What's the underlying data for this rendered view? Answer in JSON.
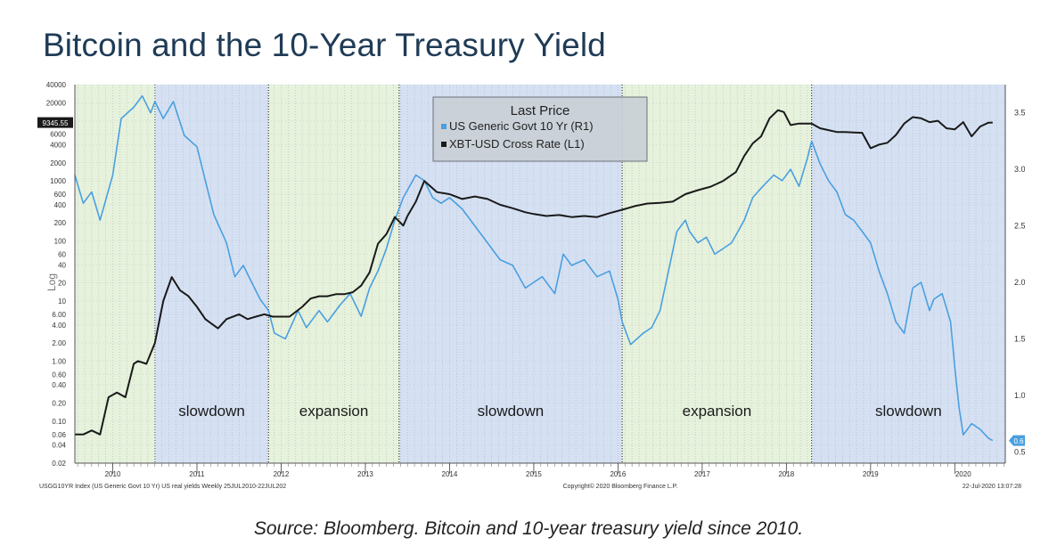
{
  "title": "Bitcoin and the 10-Year Treasury Yield",
  "caption": "Source: Bloomberg. Bitcoin and 10-year treasury yield since 2010.",
  "chart_data": {
    "type": "line",
    "left_axis": {
      "label": "Log",
      "scale": "log",
      "range": [
        0.02,
        40000
      ],
      "ticks": [
        40000,
        20000,
        10000,
        6000,
        4000,
        2000,
        1000,
        600,
        400,
        200,
        100,
        60,
        40,
        20,
        10,
        6,
        4,
        2,
        1,
        0.6,
        0.4,
        0.2,
        0.1,
        0.06,
        0.04,
        0.02
      ],
      "tick_labels": [
        "40000",
        "20000",
        "10000",
        "6000",
        "4000",
        "2000",
        "1000",
        "600",
        "400",
        "200",
        "100",
        "60",
        "40",
        "20",
        "10",
        "6.00",
        "4.00",
        "2.00",
        "1.00",
        "0.60",
        "0.40",
        "0.20",
        "0.10",
        "0.06",
        "0.04",
        "0.02"
      ],
      "last_value_label": "9345.55"
    },
    "right_axis": {
      "range": [
        0.4,
        3.75
      ],
      "ticks": [
        3.5,
        3.0,
        2.5,
        2.0,
        1.5,
        1.0,
        0.5
      ],
      "tick_labels": [
        "3.5",
        "3.0",
        "2.5",
        "2.0",
        "1.5",
        "1.0",
        "0.5"
      ],
      "last_value_label": "0.6"
    },
    "x_axis": {
      "range": [
        2009.55,
        2020.6
      ],
      "year_labels": [
        "2010",
        "2011",
        "2012",
        "2013",
        "2014",
        "2015",
        "2016",
        "2017",
        "2018",
        "2019",
        "2020"
      ],
      "label_positions": [
        2010.0,
        2011.0,
        2012.0,
        2013.0,
        2014.0,
        2015.0,
        2016.0,
        2017.0,
        2018.0,
        2019.0,
        2020.1
      ]
    },
    "legend": {
      "title": "Last Price",
      "placement": "top-center",
      "entries": [
        "US Generic Govt 10 Yr  (R1)",
        "XBT-USD Cross Rate  (L1)"
      ]
    },
    "regimes": [
      {
        "label": "",
        "start": 2009.55,
        "end": 2010.5,
        "color": "#e6f2dc"
      },
      {
        "label": "slowdown",
        "start": 2010.5,
        "end": 2011.85,
        "color": "#d5e1f3"
      },
      {
        "label": "expansion",
        "start": 2011.85,
        "end": 2013.4,
        "color": "#e6f2dc"
      },
      {
        "label": "slowdown",
        "start": 2013.4,
        "end": 2016.05,
        "color": "#d5e1f3"
      },
      {
        "label": "expansion",
        "start": 2016.05,
        "end": 2018.3,
        "color": "#e6f2dc"
      },
      {
        "label": "slowdown",
        "start": 2018.3,
        "end": 2020.6,
        "color": "#d5e1f3"
      }
    ],
    "series": [
      {
        "name": "US Generic Govt 10 Yr  (R1)",
        "axis": "right",
        "color": "#4a9fe0",
        "x": [
          2009.55,
          2009.65,
          2009.75,
          2009.85,
          2010.0,
          2010.1,
          2010.25,
          2010.35,
          2010.45,
          2010.5,
          2010.6,
          2010.72,
          2010.85,
          2011.0,
          2011.1,
          2011.2,
          2011.35,
          2011.45,
          2011.55,
          2011.65,
          2011.75,
          2011.85,
          2011.92,
          2012.05,
          2012.2,
          2012.3,
          2012.45,
          2012.55,
          2012.7,
          2012.82,
          2012.95,
          2013.05,
          2013.15,
          2013.25,
          2013.35,
          2013.45,
          2013.6,
          2013.7,
          2013.8,
          2013.9,
          2014.0,
          2014.15,
          2014.3,
          2014.45,
          2014.6,
          2014.75,
          2014.9,
          2015.0,
          2015.1,
          2015.25,
          2015.35,
          2015.45,
          2015.6,
          2015.75,
          2015.9,
          2016.0,
          2016.05,
          2016.15,
          2016.3,
          2016.4,
          2016.5,
          2016.6,
          2016.7,
          2016.8,
          2016.85,
          2016.95,
          2017.05,
          2017.15,
          2017.25,
          2017.35,
          2017.5,
          2017.6,
          2017.72,
          2017.85,
          2017.95,
          2018.05,
          2018.15,
          2018.25,
          2018.3,
          2018.4,
          2018.5,
          2018.6,
          2018.7,
          2018.8,
          2018.9,
          2019.0,
          2019.1,
          2019.2,
          2019.3,
          2019.4,
          2019.5,
          2019.6,
          2019.7,
          2019.75,
          2019.85,
          2019.95,
          2020.0,
          2020.05,
          2020.1,
          2020.2,
          2020.3,
          2020.4,
          2020.45
        ],
        "values": [
          2.95,
          2.7,
          2.8,
          2.55,
          2.95,
          3.45,
          3.55,
          3.65,
          3.5,
          3.6,
          3.45,
          3.6,
          3.3,
          3.2,
          2.9,
          2.6,
          2.35,
          2.05,
          2.15,
          2.0,
          1.85,
          1.75,
          1.55,
          1.5,
          1.75,
          1.6,
          1.75,
          1.65,
          1.8,
          1.9,
          1.7,
          1.95,
          2.1,
          2.3,
          2.55,
          2.75,
          2.95,
          2.9,
          2.75,
          2.7,
          2.75,
          2.65,
          2.5,
          2.35,
          2.2,
          2.15,
          1.95,
          2.0,
          2.05,
          1.9,
          2.25,
          2.15,
          2.2,
          2.05,
          2.1,
          1.85,
          1.65,
          1.45,
          1.55,
          1.6,
          1.75,
          2.1,
          2.45,
          2.55,
          2.45,
          2.35,
          2.4,
          2.25,
          2.3,
          2.35,
          2.55,
          2.75,
          2.85,
          2.95,
          2.9,
          3.0,
          2.85,
          3.1,
          3.25,
          3.05,
          2.9,
          2.8,
          2.6,
          2.55,
          2.45,
          2.35,
          2.1,
          1.9,
          1.65,
          1.55,
          1.95,
          2.0,
          1.75,
          1.85,
          1.9,
          1.65,
          1.25,
          0.9,
          0.65,
          0.75,
          0.7,
          0.62,
          0.6
        ]
      },
      {
        "name": "XBT-USD Cross Rate  (L1)",
        "axis": "left",
        "color": "#1a1a1a",
        "x": [
          2009.55,
          2009.65,
          2009.75,
          2009.85,
          2009.95,
          2010.05,
          2010.15,
          2010.25,
          2010.3,
          2010.4,
          2010.5,
          2010.6,
          2010.7,
          2010.8,
          2010.9,
          2011.0,
          2011.1,
          2011.25,
          2011.35,
          2011.5,
          2011.6,
          2011.7,
          2011.8,
          2011.9,
          2012.0,
          2012.1,
          2012.25,
          2012.35,
          2012.45,
          2012.55,
          2012.65,
          2012.75,
          2012.85,
          2012.95,
          2013.05,
          2013.15,
          2013.25,
          2013.35,
          2013.45,
          2013.5,
          2013.6,
          2013.7,
          2013.85,
          2014.0,
          2014.15,
          2014.3,
          2014.45,
          2014.6,
          2014.75,
          2014.9,
          2015.0,
          2015.15,
          2015.3,
          2015.45,
          2015.6,
          2015.75,
          2015.9,
          2016.05,
          2016.2,
          2016.35,
          2016.5,
          2016.65,
          2016.8,
          2016.95,
          2017.1,
          2017.25,
          2017.4,
          2017.5,
          2017.6,
          2017.7,
          2017.8,
          2017.9,
          2017.97,
          2018.05,
          2018.15,
          2018.3,
          2018.4,
          2018.5,
          2018.6,
          2018.7,
          2018.8,
          2018.9,
          2019.0,
          2019.1,
          2019.2,
          2019.3,
          2019.4,
          2019.5,
          2019.6,
          2019.7,
          2019.8,
          2019.9,
          2020.0,
          2020.1,
          2020.2,
          2020.3,
          2020.4,
          2020.45
        ],
        "values": [
          0.06,
          0.06,
          0.07,
          0.06,
          0.25,
          0.3,
          0.25,
          0.9,
          1.0,
          0.9,
          2.0,
          10,
          25,
          15,
          12,
          8,
          5,
          3.5,
          5,
          6,
          5,
          5.5,
          6,
          5.5,
          5.5,
          5.5,
          8,
          11,
          12,
          12,
          13,
          13,
          14,
          18,
          30,
          90,
          130,
          250,
          180,
          260,
          450,
          1000,
          650,
          600,
          500,
          550,
          500,
          400,
          350,
          300,
          280,
          260,
          270,
          250,
          260,
          250,
          290,
          330,
          380,
          420,
          430,
          450,
          600,
          700,
          800,
          1000,
          1400,
          2600,
          4200,
          5500,
          11000,
          15000,
          14000,
          8500,
          9000,
          9000,
          7500,
          7000,
          6500,
          6500,
          6400,
          6300,
          3500,
          4000,
          4300,
          5800,
          9000,
          11500,
          11000,
          9500,
          10000,
          7500,
          7200,
          9500,
          5500,
          8000,
          9300,
          9345.55
        ]
      }
    ],
    "annotations": [
      "slowdown",
      "expansion",
      "slowdown",
      "expansion",
      "slowdown"
    ],
    "footer_left": "USGG10YR Index (US Generic Govt 10 Yr) US real yields  Weekly 25JUL2010-22JUL202",
    "footer_center": "Copyright© 2020 Bloomberg Finance L.P.",
    "footer_right": "22-Jul-2020 13:07:28"
  }
}
